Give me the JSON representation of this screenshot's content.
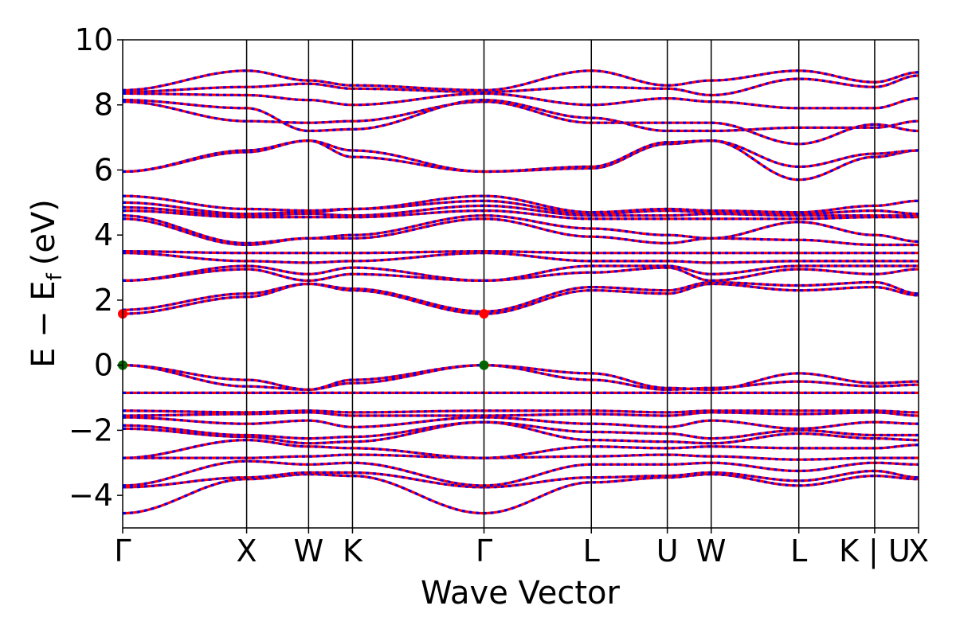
{
  "chart_data": {
    "type": "line",
    "xlabel": "Wave Vector",
    "ylabel": "E − E",
    "ylabel_sub": "f",
    "ylabel_unit": "(eV)",
    "ylim": [
      -5,
      10
    ],
    "yticks": [
      -4,
      -2,
      0,
      2,
      4,
      6,
      8,
      10
    ],
    "ytick_labels": [
      "−4",
      "−2",
      "0",
      "2",
      "4",
      "6",
      "8",
      "10"
    ],
    "kpath": [
      {
        "label": "Γ",
        "k": 0.0
      },
      {
        "label": "X",
        "k": 1.0
      },
      {
        "label": "W",
        "k": 1.5
      },
      {
        "label": "K",
        "k": 1.854
      },
      {
        "label": "Γ",
        "k": 2.915
      },
      {
        "label": "L",
        "k": 3.781
      },
      {
        "label": "U",
        "k": 4.394
      },
      {
        "label": "W",
        "k": 4.748
      },
      {
        "label": "L",
        "k": 5.455
      },
      {
        "label": "K | U",
        "k": 6.067
      },
      {
        "label": "X",
        "k": 6.421
      }
    ],
    "colors": {
      "band": "#ff0000",
      "band_overlay": "#0000ff",
      "extremum_vbm": "#006400",
      "extremum_cbm": "#ff0000",
      "frame": "#000000"
    },
    "special_points": [
      {
        "kind": "VBM",
        "k": 0.0,
        "energy": 0.0
      },
      {
        "kind": "VBM",
        "k": 2.915,
        "energy": 0.0
      },
      {
        "kind": "CBM",
        "k": 0.0,
        "energy": 1.58
      },
      {
        "kind": "CBM",
        "k": 2.915,
        "energy": 1.58
      }
    ],
    "bands": [
      [
        -4.55,
        -3.5,
        -3.35,
        -3.4,
        -4.55,
        -3.6,
        -3.45,
        -3.35,
        -3.7,
        -3.4,
        -3.5
      ],
      [
        -3.75,
        -3.45,
        -3.3,
        -3.3,
        -3.75,
        -3.45,
        -3.4,
        -3.3,
        -3.55,
        -3.25,
        -3.45
      ],
      [
        -3.7,
        -2.95,
        -3.05,
        -3.0,
        -3.7,
        -3.05,
        -3.05,
        -3.0,
        -3.25,
        -3.0,
        -3.05
      ],
      [
        -2.85,
        -2.85,
        -2.8,
        -2.75,
        -2.85,
        -2.8,
        -2.75,
        -2.8,
        -2.9,
        -2.85,
        -2.85
      ],
      [
        -2.85,
        -2.3,
        -2.5,
        -2.55,
        -2.85,
        -2.5,
        -2.55,
        -2.5,
        -2.55,
        -2.55,
        -2.45
      ],
      [
        -1.95,
        -2.2,
        -2.4,
        -2.35,
        -1.75,
        -2.3,
        -2.35,
        -2.4,
        -2.1,
        -2.25,
        -2.3
      ],
      [
        -1.85,
        -2.15,
        -2.25,
        -2.2,
        -1.75,
        -2.05,
        -2.1,
        -2.25,
        -2.0,
        -2.15,
        -2.15
      ],
      [
        -1.6,
        -1.8,
        -1.7,
        -1.9,
        -1.6,
        -1.8,
        -1.9,
        -1.7,
        -1.95,
        -1.75,
        -1.8
      ],
      [
        -1.55,
        -1.5,
        -1.45,
        -1.55,
        -1.55,
        -1.5,
        -1.55,
        -1.45,
        -1.5,
        -1.45,
        -1.55
      ],
      [
        -1.4,
        -1.45,
        -1.4,
        -1.45,
        -1.4,
        -1.4,
        -1.45,
        -1.4,
        -1.4,
        -1.4,
        -1.45
      ],
      [
        -0.85,
        -0.85,
        -0.85,
        -0.85,
        -0.85,
        -0.85,
        -0.85,
        -0.85,
        -0.85,
        -0.85,
        -0.85
      ],
      [
        0.0,
        -0.65,
        -0.75,
        -0.55,
        0.0,
        -0.45,
        -0.75,
        -0.7,
        -0.5,
        -0.65,
        -0.6
      ],
      [
        0.0,
        -0.45,
        -0.75,
        -0.45,
        0.0,
        -0.25,
        -0.7,
        -0.75,
        -0.25,
        -0.55,
        -0.5
      ],
      [
        1.58,
        2.1,
        2.5,
        2.3,
        1.58,
        2.3,
        2.2,
        2.5,
        2.3,
        2.4,
        2.15
      ],
      [
        1.7,
        2.2,
        2.5,
        2.35,
        1.65,
        2.4,
        2.3,
        2.55,
        2.45,
        2.55,
        2.2
      ],
      [
        2.6,
        2.95,
        2.6,
        2.8,
        2.6,
        2.85,
        3.0,
        2.6,
        2.95,
        2.8,
        2.95
      ],
      [
        2.6,
        3.05,
        2.8,
        3.0,
        2.6,
        3.05,
        3.05,
        2.8,
        3.05,
        3.05,
        3.05
      ],
      [
        3.45,
        3.2,
        3.15,
        3.2,
        3.45,
        3.2,
        3.2,
        3.15,
        3.2,
        3.2,
        3.2
      ],
      [
        3.5,
        3.45,
        3.45,
        3.45,
        3.5,
        3.45,
        3.45,
        3.45,
        3.45,
        3.45,
        3.45
      ],
      [
        4.5,
        3.7,
        3.9,
        3.9,
        4.5,
        3.95,
        3.75,
        3.9,
        3.85,
        3.7,
        3.7
      ],
      [
        4.6,
        3.75,
        3.9,
        4.0,
        4.6,
        4.2,
        4.0,
        3.9,
        4.4,
        4.0,
        3.8
      ],
      [
        4.75,
        4.55,
        4.55,
        4.55,
        4.75,
        4.5,
        4.5,
        4.5,
        4.5,
        4.55,
        4.55
      ],
      [
        4.85,
        4.6,
        4.65,
        4.6,
        4.9,
        4.6,
        4.6,
        4.65,
        4.6,
        4.6,
        4.6
      ],
      [
        5.0,
        4.65,
        4.7,
        4.8,
        5.05,
        4.65,
        4.75,
        4.7,
        4.65,
        4.75,
        4.65
      ],
      [
        5.2,
        4.8,
        4.75,
        4.8,
        5.2,
        4.7,
        4.8,
        4.75,
        4.7,
        4.9,
        5.05
      ],
      [
        5.95,
        6.55,
        6.9,
        6.4,
        5.95,
        6.05,
        6.8,
        6.9,
        5.7,
        6.4,
        6.6
      ],
      [
        5.95,
        6.6,
        6.9,
        6.6,
        5.95,
        6.1,
        6.85,
        6.9,
        6.1,
        6.5,
        6.6
      ],
      [
        8.1,
        7.5,
        7.45,
        7.5,
        8.1,
        7.45,
        7.45,
        7.45,
        6.8,
        7.4,
        7.2
      ],
      [
        8.15,
        7.9,
        7.2,
        7.25,
        8.15,
        7.6,
        7.2,
        7.2,
        7.3,
        7.3,
        7.5
      ],
      [
        8.35,
        8.3,
        8.15,
        8.0,
        8.35,
        8.0,
        8.2,
        8.1,
        7.9,
        7.9,
        8.2
      ],
      [
        8.4,
        8.55,
        8.65,
        8.5,
        8.4,
        8.55,
        8.5,
        8.3,
        8.8,
        8.55,
        8.9
      ],
      [
        8.45,
        9.05,
        8.75,
        8.6,
        8.45,
        9.05,
        8.6,
        8.75,
        9.05,
        8.7,
        9.0
      ]
    ]
  }
}
